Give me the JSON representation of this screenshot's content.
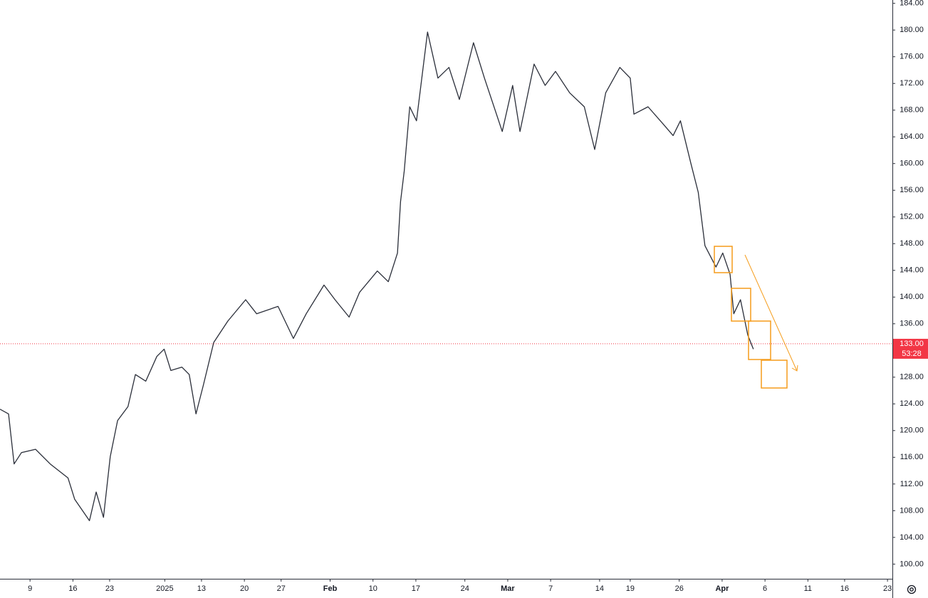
{
  "chart_data": {
    "type": "line",
    "x": [
      -4.9,
      -3.5,
      -2.6,
      -1.4,
      0.9,
      3.3,
      6.2,
      7.3,
      9.7,
      10.8,
      12,
      13.1,
      14.3,
      16,
      17.2,
      18.9,
      20.7,
      21.9,
      23,
      24.8,
      26,
      27.1,
      28.3,
      30,
      32.3,
      35.2,
      37,
      40.5,
      43,
      45.1,
      48,
      49.8,
      52.1,
      53.8,
      56.7,
      58.5,
      60,
      60.5,
      61.1,
      62,
      63.1,
      64.9,
      66.6,
      68.4,
      70.1,
      72.4,
      74.2,
      77.1,
      78.8,
      80,
      82.3,
      84.1,
      85.8,
      88.1,
      90.5,
      92.2,
      94,
      96.3,
      98,
      98.6,
      100.9,
      103.5,
      105,
      106.2,
      107.9,
      109.1,
      110.2,
      112,
      113.1,
      114.3,
      114.9,
      116,
      117.2,
      118.1
    ],
    "series": [
      {
        "color": "#2a2e39",
        "values": [
          123.2,
          122.5,
          115,
          116.7,
          117.2,
          115,
          112.9,
          109.7,
          106.5,
          110.8,
          107,
          116.1,
          121.5,
          123.6,
          128.4,
          127.4,
          131.1,
          132.2,
          129,
          129.5,
          128.4,
          122.5,
          126.8,
          133.2,
          136.4,
          139.6,
          137.5,
          138.6,
          133.8,
          137.5,
          141.8,
          139.6,
          137,
          140.7,
          143.9,
          142.3,
          146.6,
          154.3,
          158.9,
          168.5,
          166.4,
          179.7,
          172.8,
          174.4,
          169.6,
          178.1,
          172.8,
          164.8,
          171.7,
          164.8,
          174.9,
          171.7,
          173.8,
          170.6,
          168.5,
          162.1,
          170.6,
          174.4,
          172.8,
          167.4,
          168.5,
          165.8,
          164.2,
          166.4,
          160,
          155.7,
          147.7,
          144.5,
          146.6,
          143.4,
          137.5,
          139.6,
          134.3,
          132.2
        ]
      }
    ],
    "xlim": [
      -4.9,
      140.8
    ],
    "xticks": [
      {
        "value": 0,
        "label": "9"
      },
      {
        "value": 7,
        "label": "16"
      },
      {
        "value": 13,
        "label": "23"
      },
      {
        "value": 22,
        "label": "2025"
      },
      {
        "value": 28,
        "label": "13"
      },
      {
        "value": 35,
        "label": "20"
      },
      {
        "value": 41,
        "label": "27"
      },
      {
        "value": 49,
        "label": "Feb"
      },
      {
        "value": 56,
        "label": "10"
      },
      {
        "value": 63,
        "label": "17"
      },
      {
        "value": 71,
        "label": "24"
      },
      {
        "value": 78,
        "label": "Mar"
      },
      {
        "value": 85,
        "label": "7"
      },
      {
        "value": 93,
        "label": "14"
      },
      {
        "value": 98,
        "label": "19"
      },
      {
        "value": 106,
        "label": "26"
      },
      {
        "value": 113,
        "label": "Apr"
      },
      {
        "value": 120,
        "label": "6"
      },
      {
        "value": 127,
        "label": "11"
      },
      {
        "value": 133,
        "label": "16"
      },
      {
        "value": 140,
        "label": "23"
      }
    ],
    "ylim": [
      97.8,
      184.5
    ],
    "yticks": [
      {
        "value": 100,
        "label": "100.00"
      },
      {
        "value": 104,
        "label": "104.00"
      },
      {
        "value": 108,
        "label": "108.00"
      },
      {
        "value": 112,
        "label": "112.00"
      },
      {
        "value": 116,
        "label": "116.00"
      },
      {
        "value": 120,
        "label": "120.00"
      },
      {
        "value": 124,
        "label": "124.00"
      },
      {
        "value": 128,
        "label": "128.00"
      },
      {
        "value": 132,
        "label": "132.00"
      },
      {
        "value": 136,
        "label": "136.00"
      },
      {
        "value": 140,
        "label": "140.00"
      },
      {
        "value": 144,
        "label": "144.00"
      },
      {
        "value": 148,
        "label": "148.00"
      },
      {
        "value": 152,
        "label": "152.00"
      },
      {
        "value": 156,
        "label": "156.00"
      },
      {
        "value": 160,
        "label": "160.00"
      },
      {
        "value": 164,
        "label": "164.00"
      },
      {
        "value": 168,
        "label": "168.00"
      },
      {
        "value": 172,
        "label": "172.00"
      },
      {
        "value": 176,
        "label": "176.00"
      },
      {
        "value": 180,
        "label": "180.00"
      },
      {
        "value": 184,
        "label": "184.00"
      }
    ],
    "last_price": {
      "value": 133,
      "label": "133.00"
    },
    "countdown": "53:28",
    "last_price_color": "#f23645"
  }
}
